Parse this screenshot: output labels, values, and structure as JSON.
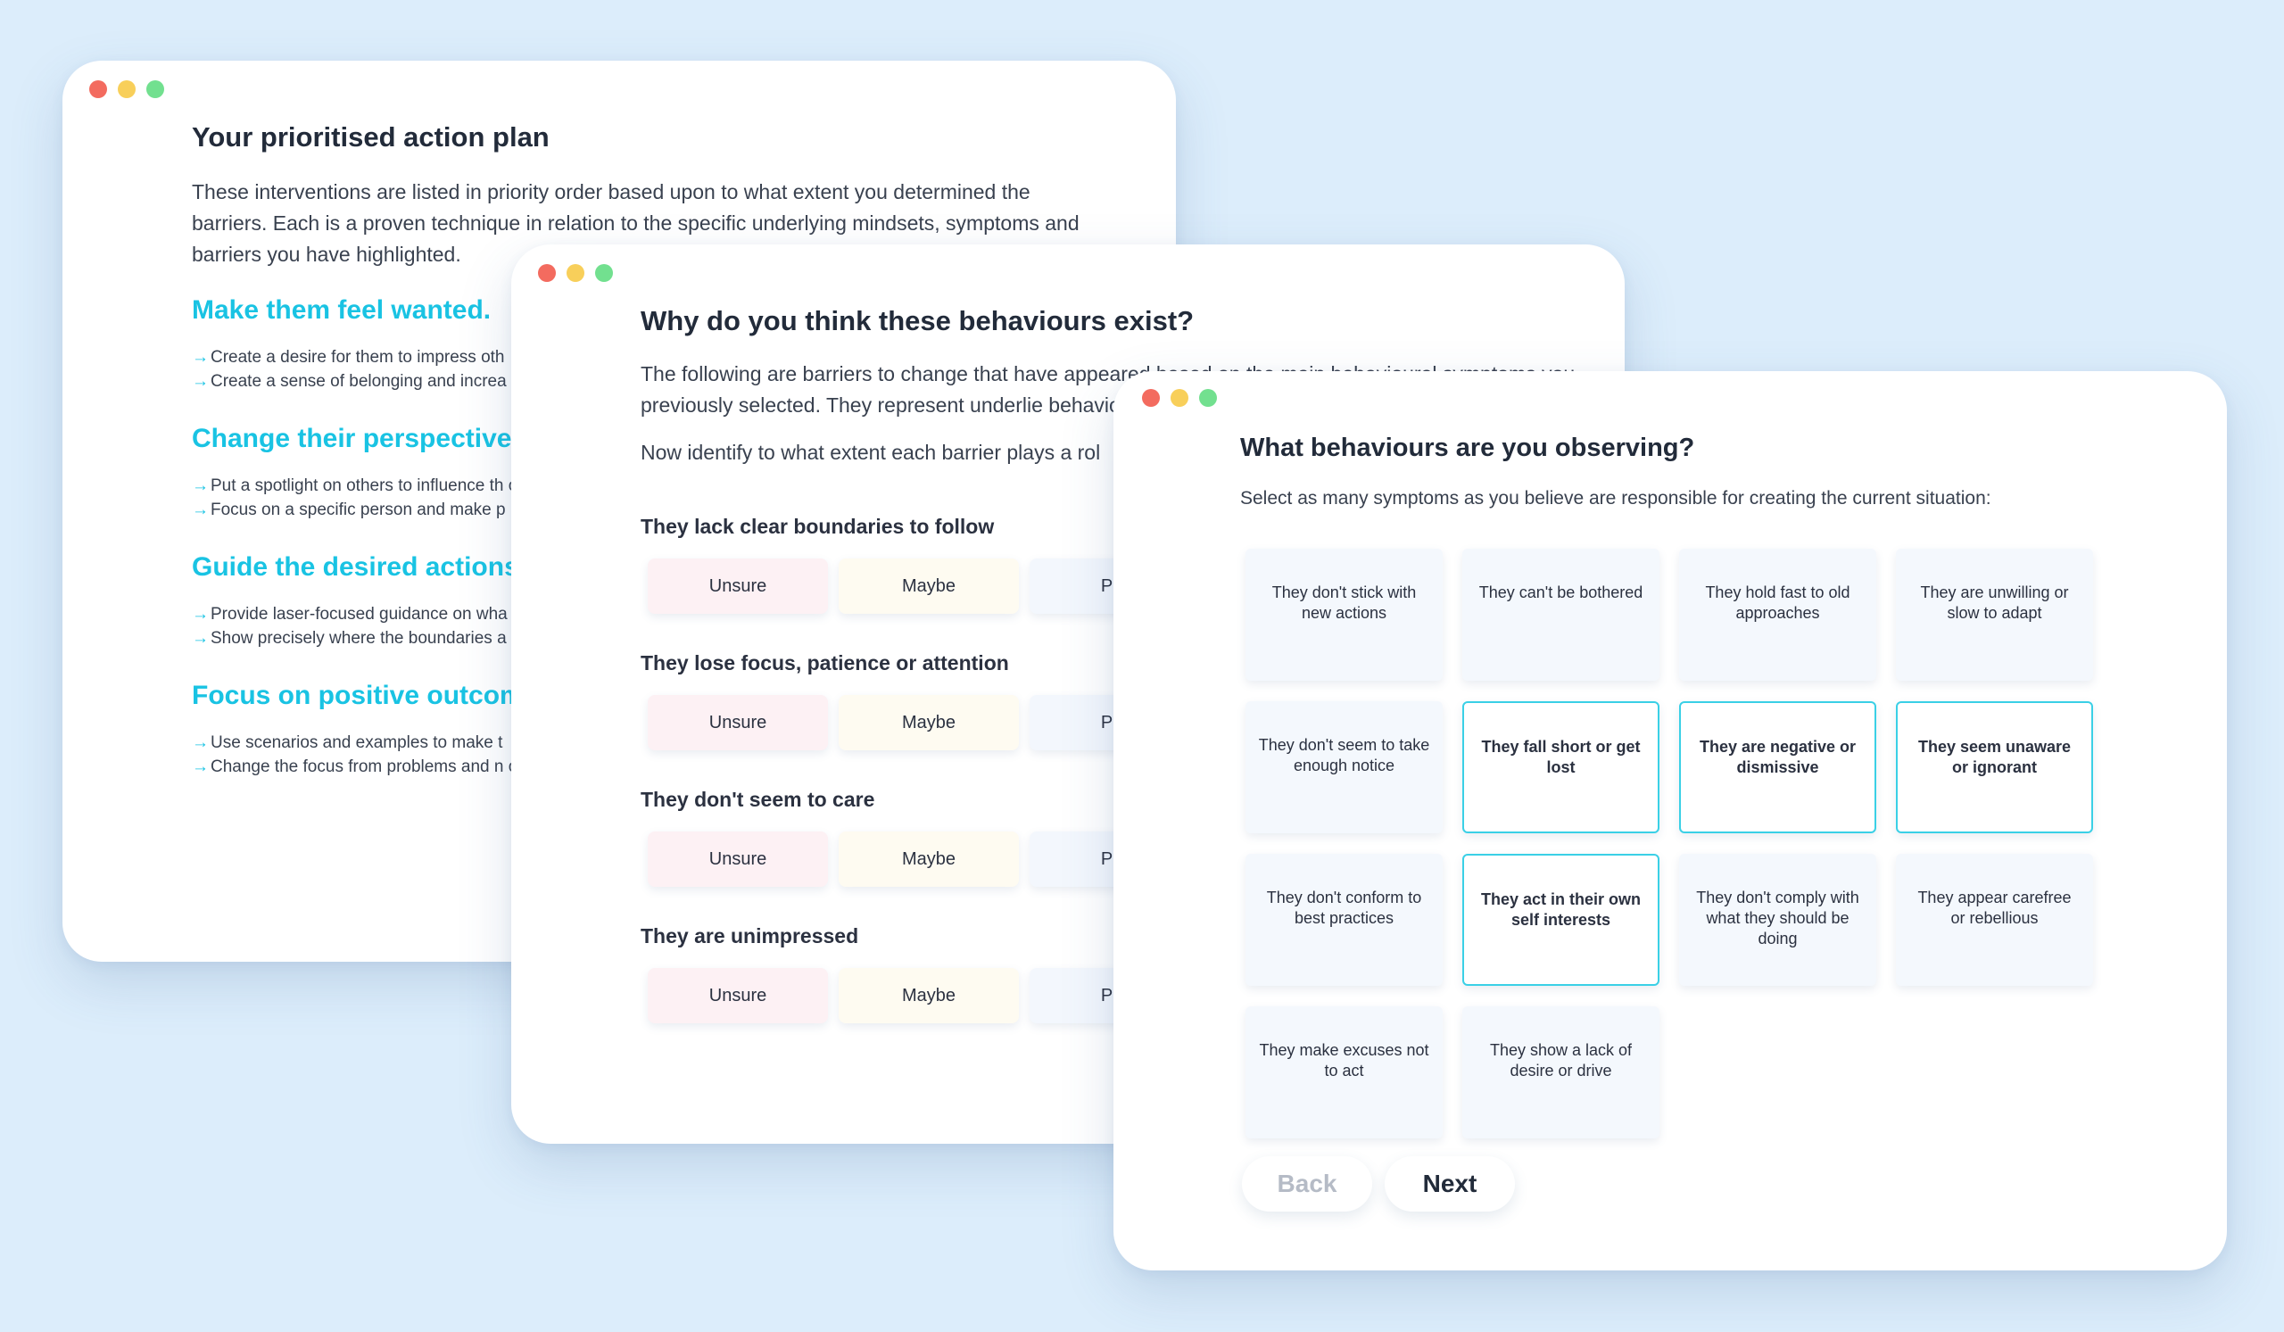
{
  "colors": {
    "background": "#dcedfb",
    "accent": "#19c3e3",
    "dot_red": "#f36b5f",
    "dot_yellow": "#f8cf5a",
    "dot_green": "#72e08f"
  },
  "action_plan": {
    "title": "Your prioritised action plan",
    "intro": "These interventions are listed in priority order based upon to what extent you determined the barriers. Each is a proven technique in relation to the specific underlying mindsets, symptoms and barriers you have highlighted.",
    "sections": [
      {
        "heading": "Make them feel wanted.",
        "items": [
          "Create a desire for them to impress oth",
          "Create a sense of belonging and increa"
        ]
      },
      {
        "heading": "Change their perspective",
        "items": [
          "Put a spotlight on others to influence th own.",
          "Focus on a specific person and make p"
        ]
      },
      {
        "heading": "Guide the desired actions",
        "items": [
          "Provide laser-focused guidance on wha any hint of ambiguity.",
          "Show precisely where the boundaries a"
        ]
      },
      {
        "heading": "Focus on positive outcom",
        "items": [
          "Use scenarios and examples to make t",
          "Change the focus from problems and n outweigh any drawbacks."
        ]
      }
    ]
  },
  "barriers": {
    "title": "Why do you think these behaviours exist?",
    "intro": "The following are barriers to change that have appeared based on the main behavioural symptoms you previously selected. They represent underlie behavioural patterns.",
    "prompt": "Now identify to what extent each barrier plays a rol",
    "options": [
      "Unsure",
      "Maybe",
      "Prob"
    ],
    "questions": [
      "They lack clear boundaries to follow",
      "They lose focus, patience or attention",
      "They don't seem to care",
      "They are unimpressed"
    ]
  },
  "behaviours": {
    "title": "What behaviours are you observing?",
    "intro": "Select as many symptoms as you believe are responsible for creating the current situation:",
    "symptoms": [
      {
        "label": "They don't stick with new actions",
        "selected": false
      },
      {
        "label": "They can't be bothered",
        "selected": false
      },
      {
        "label": "They hold fast to old approaches",
        "selected": false
      },
      {
        "label": "They are unwilling or slow to adapt",
        "selected": false
      },
      {
        "label": "They don't seem to take enough notice",
        "selected": false
      },
      {
        "label": "They fall short or get lost",
        "selected": true
      },
      {
        "label": "They are negative or dismissive",
        "selected": true
      },
      {
        "label": "They seem unaware or ignorant",
        "selected": true
      },
      {
        "label": "They don't conform to best practices",
        "selected": false
      },
      {
        "label": "They act in their own self interests",
        "selected": true
      },
      {
        "label": "They don't comply with what they should be doing",
        "selected": false
      },
      {
        "label": "They appear carefree or rebellious",
        "selected": false
      },
      {
        "label": "They make excuses not to act",
        "selected": false
      },
      {
        "label": "They show a lack of desire or drive",
        "selected": false
      }
    ],
    "back_label": "Back",
    "next_label": "Next"
  }
}
